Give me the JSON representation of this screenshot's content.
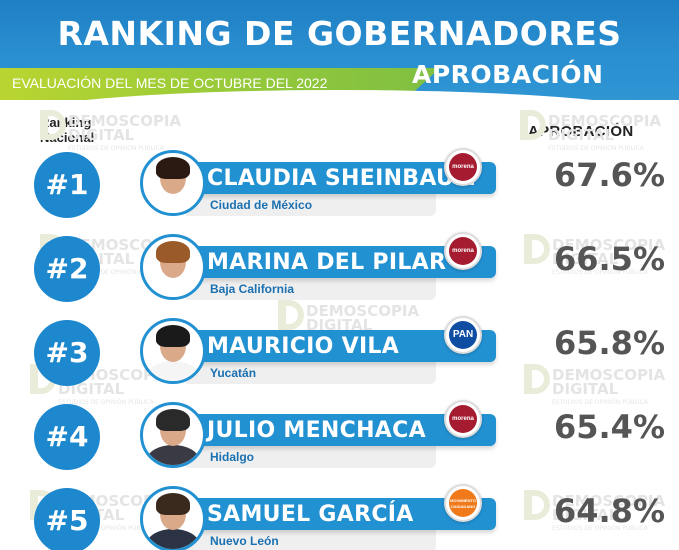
{
  "header": {
    "title": "RANKING DE GOBERNADORES",
    "evaluation": "EVALUACIÓN DEL MES DE OCTUBRE DEL 2022",
    "approval_heading": "APROBACIÓN"
  },
  "columns": {
    "ranking_label_line1": "Ranking",
    "ranking_label_line2": "Nacional",
    "approval_label": "APROBACIÓN"
  },
  "watermark": {
    "line1": "DEMOSCOPIA",
    "line2": "DIGITAL",
    "line3": "ESTUDIOS DE OPINIÓN PÚBLICA"
  },
  "rows": [
    {
      "rank": "#1",
      "name": "CLAUDIA SHEINBAUM",
      "state": "Ciudad de México",
      "party": "morena",
      "party_color": "#a51c30",
      "approval": "67.6%",
      "hair_color": "#2a1a12",
      "body_color": "#ffffff"
    },
    {
      "rank": "#2",
      "name": "MARINA DEL PILAR",
      "state": "Baja California",
      "party": "morena",
      "party_color": "#a51c30",
      "approval": "66.5%",
      "hair_color": "#9a5a2a",
      "body_color": "#ffffff"
    },
    {
      "rank": "#3",
      "name": "MAURICIO VILA",
      "state": "Yucatán",
      "party": "PAN",
      "party_color": "#0f4da3",
      "approval": "65.8%",
      "hair_color": "#1a1a1a",
      "body_color": "#f5f5f5"
    },
    {
      "rank": "#4",
      "name": "JULIO MENCHACA",
      "state": "Hidalgo",
      "party": "morena",
      "party_color": "#a51c30",
      "approval": "65.4%",
      "hair_color": "#2a2a2a",
      "body_color": "#3a3a44"
    },
    {
      "rank": "#5",
      "name": "SAMUEL GARCÍA",
      "state": "Nuevo León",
      "party": "MOVIMIENTO CIUDADANO",
      "party_color": "#f07a1a",
      "approval": "64.8%",
      "hair_color": "#3a2a1e",
      "body_color": "#2b3345"
    }
  ]
}
